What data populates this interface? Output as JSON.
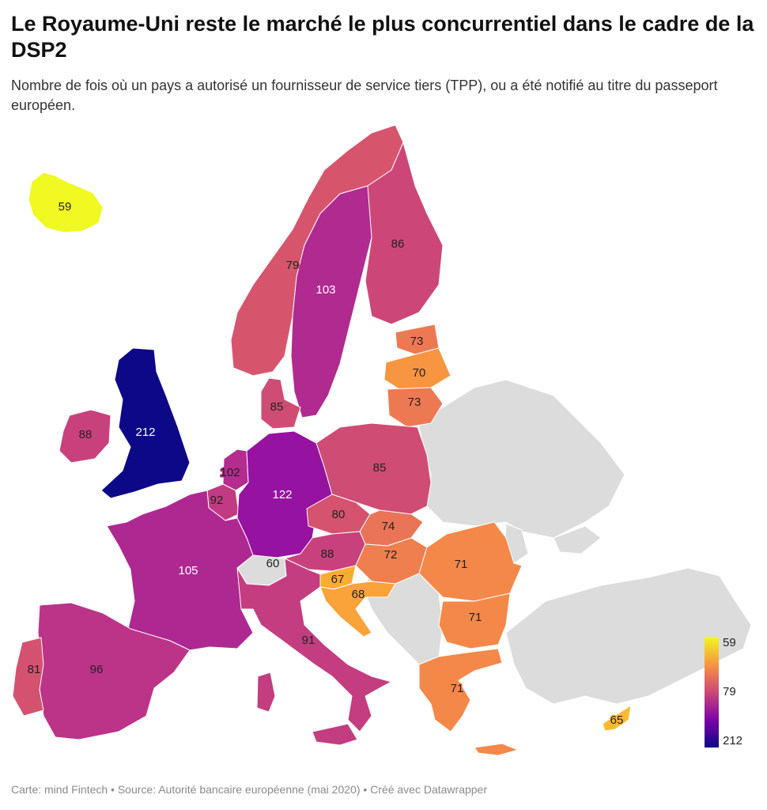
{
  "title": "Le Royaume-Uni reste le marché le plus concurrentiel dans le cadre de la DSP2",
  "subtitle": "Nombre de fois où un pays a autorisé un fournisseur de service tiers (TPP), ou a été notifié au titre du passeport européen.",
  "footer": "Carte: mind Fintech • Source: Autorité bancaire européenne (mai 2020) • Créé avec Datawrapper",
  "legend": {
    "min_label": "59",
    "mid_label": "79",
    "max_label": "212",
    "colors": [
      "#f0f921",
      "#f89540",
      "#cc4778",
      "#7e03a8",
      "#0d0887"
    ]
  },
  "no_data_color": "#dcdcdc",
  "map_data": {
    "countries": [
      {
        "id": "iceland",
        "value": 59,
        "color": "#f0f921"
      },
      {
        "id": "norway",
        "value": 79,
        "color": "#d6556d"
      },
      {
        "id": "sweden",
        "value": 103,
        "color": "#b12a90"
      },
      {
        "id": "finland",
        "value": 86,
        "color": "#cc4778"
      },
      {
        "id": "estonia",
        "value": 73,
        "color": "#ed7953"
      },
      {
        "id": "latvia",
        "value": 70,
        "color": "#f89540"
      },
      {
        "id": "lithuania",
        "value": 73,
        "color": "#ed7953"
      },
      {
        "id": "denmark",
        "value": 85,
        "color": "#cf4c74"
      },
      {
        "id": "uk",
        "value": 212,
        "color": "#0d0887"
      },
      {
        "id": "ireland",
        "value": 88,
        "color": "#c8417d"
      },
      {
        "id": "netherlands",
        "value": 102,
        "color": "#b32c8e"
      },
      {
        "id": "belgium",
        "value": 92,
        "color": "#c13b82"
      },
      {
        "id": "germany",
        "value": 122,
        "color": "#9612a1"
      },
      {
        "id": "poland",
        "value": 85,
        "color": "#cf4c74"
      },
      {
        "id": "czechia",
        "value": 80,
        "color": "#d5536f"
      },
      {
        "id": "slovakia",
        "value": 74,
        "color": "#ea7457"
      },
      {
        "id": "austria",
        "value": 88,
        "color": "#c8417d"
      },
      {
        "id": "hungary",
        "value": 72,
        "color": "#f07f4f"
      },
      {
        "id": "switzerland",
        "value": 60,
        "color": null
      },
      {
        "id": "france",
        "value": 105,
        "color": "#ae2892"
      },
      {
        "id": "slovenia",
        "value": 67,
        "color": "#fbac33"
      },
      {
        "id": "croatia",
        "value": 68,
        "color": "#f9a33a"
      },
      {
        "id": "romania",
        "value": 71,
        "color": "#f48849"
      },
      {
        "id": "bulgaria",
        "value": 71,
        "color": "#f48849"
      },
      {
        "id": "italy",
        "value": 91,
        "color": "#c33d80"
      },
      {
        "id": "spain",
        "value": 96,
        "color": "#bb3488"
      },
      {
        "id": "portugal",
        "value": 81,
        "color": "#d45270"
      },
      {
        "id": "greece",
        "value": 71,
        "color": "#f48849"
      },
      {
        "id": "cyprus",
        "value": 65,
        "color": "#fdb92f"
      }
    ]
  }
}
